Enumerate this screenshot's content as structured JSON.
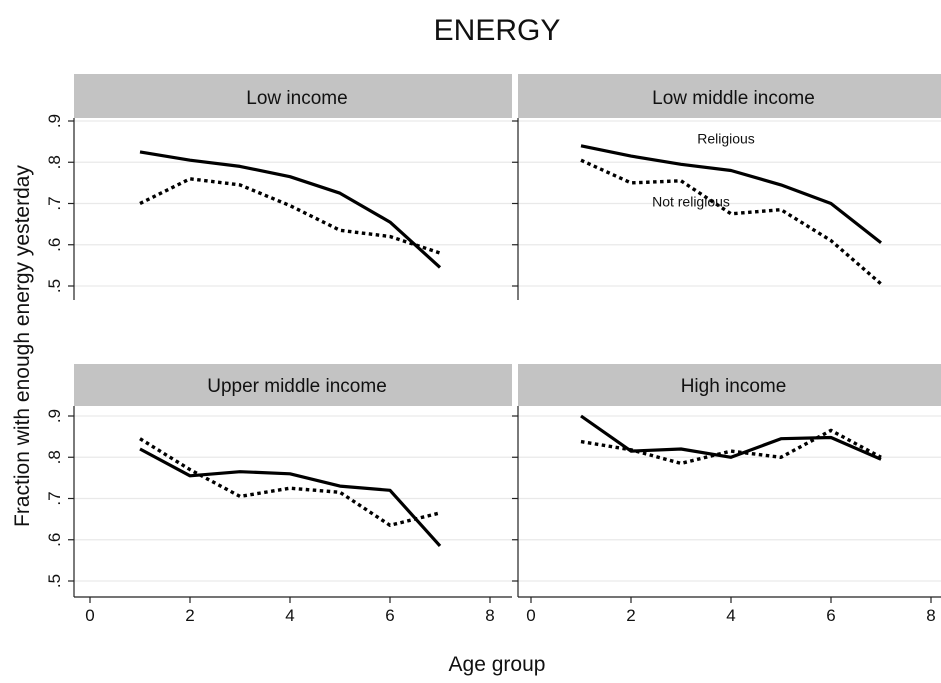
{
  "chart_data": {
    "type": "line",
    "title": "ENERGY",
    "xlabel": "Age group",
    "ylabel": "Fraction with enough energy yesterday",
    "xlim": [
      0,
      8
    ],
    "ylim": [
      0.5,
      0.9
    ],
    "x_ticks": [
      "0",
      "2",
      "4",
      "6",
      "8"
    ],
    "y_ticks": [
      ".5",
      ".6",
      ".7",
      ".8",
      ".9"
    ],
    "grid": true,
    "legend": "none",
    "panels": [
      {
        "label": "Low income",
        "x": [
          1,
          2,
          3,
          4,
          5,
          6,
          7
        ],
        "series": [
          {
            "name": "Religious",
            "style": "solid",
            "values": [
              0.825,
              0.805,
              0.79,
              0.765,
              0.725,
              0.655,
              0.545
            ]
          },
          {
            "name": "Not religious",
            "style": "dotted",
            "values": [
              0.7,
              0.76,
              0.745,
              0.695,
              0.635,
              0.62,
              0.58
            ]
          }
        ],
        "annotations": []
      },
      {
        "label": "Low middle income",
        "x": [
          1,
          2,
          3,
          4,
          5,
          6,
          7
        ],
        "series": [
          {
            "name": "Religious",
            "style": "solid",
            "values": [
              0.84,
              0.815,
              0.795,
              0.78,
              0.745,
              0.7,
              0.605
            ]
          },
          {
            "name": "Not religious",
            "style": "dotted",
            "values": [
              0.805,
              0.75,
              0.755,
              0.675,
              0.685,
              0.61,
              0.505
            ]
          }
        ],
        "annotations": [
          {
            "text": "Religious",
            "x": 3.9,
            "y": 0.845
          },
          {
            "text": "Not religious",
            "x": 3.2,
            "y": 0.693
          }
        ]
      },
      {
        "label": "Upper middle income",
        "x": [
          1,
          2,
          3,
          4,
          5,
          6,
          7
        ],
        "series": [
          {
            "name": "Religious",
            "style": "solid",
            "values": [
              0.82,
              0.755,
              0.765,
              0.76,
              0.73,
              0.72,
              0.585
            ]
          },
          {
            "name": "Not religious",
            "style": "dotted",
            "values": [
              0.845,
              0.77,
              0.705,
              0.725,
              0.715,
              0.635,
              0.665
            ]
          }
        ],
        "annotations": []
      },
      {
        "label": "High income",
        "x": [
          1,
          2,
          3,
          4,
          5,
          6,
          7
        ],
        "series": [
          {
            "name": "Religious",
            "style": "solid",
            "values": [
              0.9,
              0.815,
              0.82,
              0.8,
              0.845,
              0.848,
              0.795
            ]
          },
          {
            "name": "Not religious",
            "style": "dotted",
            "values": [
              0.838,
              0.818,
              0.785,
              0.815,
              0.8,
              0.865,
              0.8
            ]
          }
        ],
        "annotations": []
      }
    ]
  }
}
